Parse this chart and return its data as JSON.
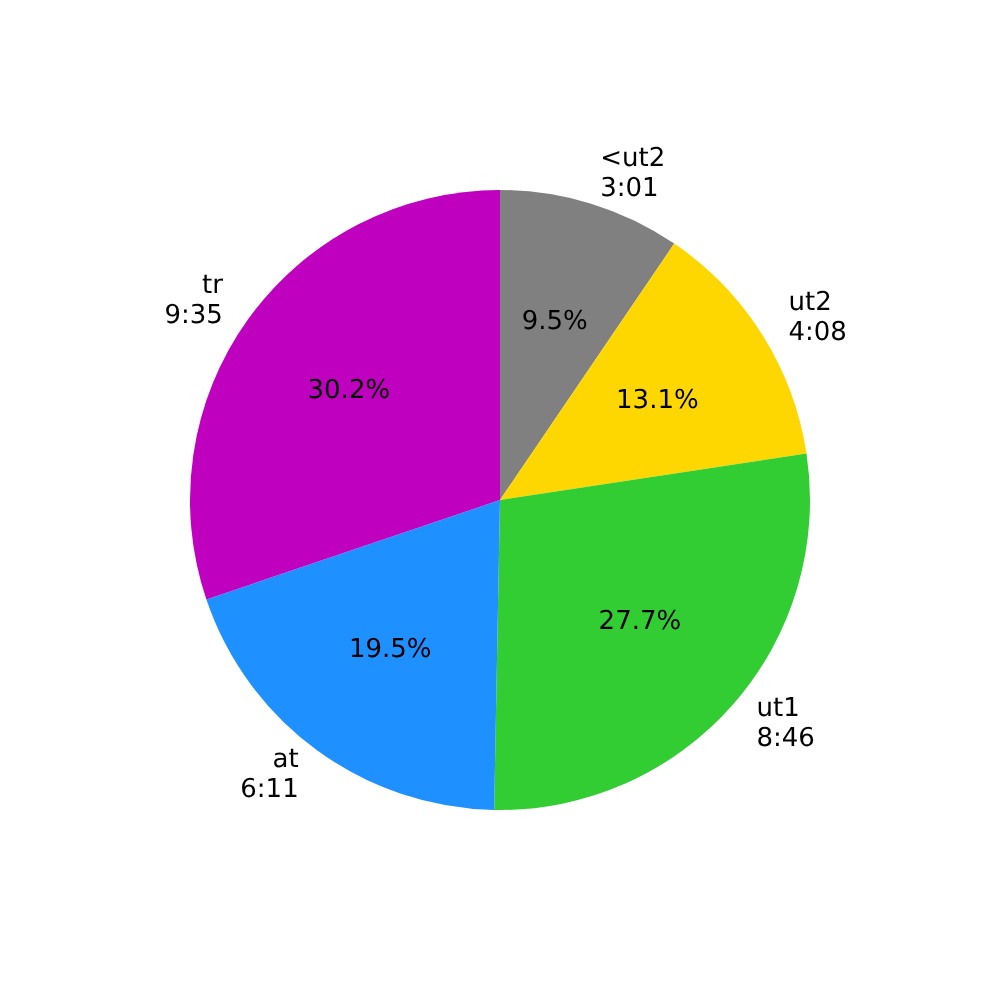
{
  "chart_data": {
    "type": "pie",
    "categories": [
      "<ut2\n3:01",
      "ut2\n4:08",
      "ut1\n8:46",
      "at\n6:11",
      "tr\n9:35"
    ],
    "values": [
      9.5,
      13.1,
      27.7,
      19.5,
      30.2
    ],
    "colors": [
      "#808080",
      "#ffd700",
      "#32cd32",
      "#1e90ff",
      "#bf00bf"
    ],
    "value_labels": [
      "9.5%",
      "13.1%",
      "27.7%",
      "19.5%",
      "30.2%"
    ],
    "legend": false
  }
}
